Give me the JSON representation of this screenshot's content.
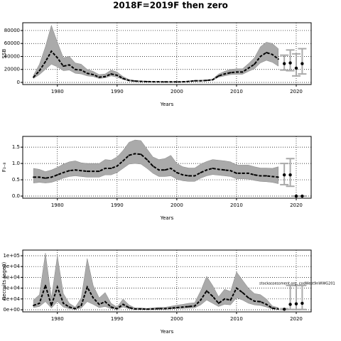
{
  "title": "2018F=2019F then zero",
  "chart_data": [
    {
      "type": "line",
      "ylabel": "SSB",
      "xlabel": "Years",
      "xlim": [
        1974.2,
        2022.5
      ],
      "xticks": [
        1980,
        1990,
        2000,
        2010,
        2020
      ],
      "ylim": [
        -3300,
        92000
      ],
      "yticks": [
        0,
        20000,
        40000,
        60000,
        80000
      ],
      "grid": true,
      "x": [
        1976,
        1977,
        1978,
        1979,
        1980,
        1981,
        1982,
        1983,
        1984,
        1985,
        1986,
        1987,
        1988,
        1989,
        1990,
        1991,
        1992,
        1993,
        1994,
        1995,
        1996,
        1997,
        1998,
        1999,
        2000,
        2001,
        2002,
        2003,
        2004,
        2005,
        2006,
        2007,
        2008,
        2009,
        2010,
        2011,
        2012,
        2013,
        2014,
        2015,
        2016,
        2017
      ],
      "values": [
        8000,
        18000,
        32000,
        48000,
        38000,
        25000,
        27000,
        20000,
        19000,
        14000,
        12000,
        8000,
        9000,
        13000,
        11000,
        6000,
        3000,
        2000,
        1500,
        1200,
        1000,
        900,
        800,
        800,
        800,
        900,
        1500,
        2500,
        2500,
        3000,
        4000,
        10000,
        13000,
        15000,
        16000,
        16000,
        22000,
        28000,
        40000,
        46000,
        43000,
        36000
      ],
      "low": [
        6000,
        12000,
        20000,
        28000,
        24000,
        18000,
        19000,
        14000,
        13000,
        10000,
        9000,
        6000,
        7000,
        10000,
        8000,
        4500,
        2200,
        1400,
        1000,
        800,
        700,
        600,
        500,
        500,
        500,
        600,
        1100,
        2000,
        2000,
        2400,
        3200,
        8000,
        10000,
        12000,
        12500,
        12500,
        17000,
        21000,
        30000,
        34000,
        31000,
        25000
      ],
      "high": [
        11000,
        28000,
        55000,
        88000,
        62000,
        38000,
        40000,
        30000,
        28000,
        20000,
        17000,
        12000,
        13000,
        19000,
        16000,
        9000,
        4500,
        3000,
        2300,
        1800,
        1500,
        1400,
        1200,
        1200,
        1200,
        1400,
        2200,
        3300,
        3300,
        4000,
        5200,
        13000,
        17000,
        20000,
        21000,
        21000,
        29000,
        38000,
        55000,
        62000,
        60000,
        52000
      ],
      "forecast_x": [
        2018,
        2019,
        2020,
        2021
      ],
      "forecast_values": [
        29000,
        30000,
        22000,
        29000
      ],
      "forecast_low": [
        19000,
        18000,
        10000,
        13000
      ],
      "forecast_high": [
        42000,
        50000,
        44000,
        52000
      ]
    },
    {
      "type": "line",
      "ylabel": "F₃₋₈",
      "xlabel": "Years",
      "xlim": [
        1974.2,
        2022.5
      ],
      "xticks": [
        1980,
        1990,
        2000,
        2010,
        2020
      ],
      "ylim": [
        -0.065,
        1.83
      ],
      "yticks": [
        {
          "value": 0,
          "label": "0.0"
        },
        0.5,
        {
          "value": 1,
          "label": "1.0"
        },
        1.5
      ],
      "grid": true,
      "x": [
        1976,
        1977,
        1978,
        1979,
        1980,
        1981,
        1982,
        1983,
        1984,
        1985,
        1986,
        1987,
        1988,
        1989,
        1990,
        1991,
        1992,
        1993,
        1994,
        1995,
        1996,
        1997,
        1998,
        1999,
        2000,
        2001,
        2002,
        2003,
        2004,
        2005,
        2006,
        2007,
        2008,
        2009,
        2010,
        2011,
        2012,
        2013,
        2014,
        2015,
        2016,
        2017
      ],
      "values": [
        0.58,
        0.58,
        0.55,
        0.58,
        0.65,
        0.72,
        0.78,
        0.8,
        0.78,
        0.76,
        0.76,
        0.76,
        0.85,
        0.85,
        0.92,
        1.08,
        1.25,
        1.3,
        1.28,
        1.12,
        0.92,
        0.8,
        0.8,
        0.85,
        0.72,
        0.65,
        0.62,
        0.62,
        0.72,
        0.8,
        0.85,
        0.82,
        0.8,
        0.78,
        0.7,
        0.7,
        0.7,
        0.65,
        0.62,
        0.62,
        0.6,
        0.58
      ],
      "low": [
        0.4,
        0.42,
        0.4,
        0.42,
        0.48,
        0.55,
        0.6,
        0.62,
        0.6,
        0.58,
        0.58,
        0.58,
        0.65,
        0.65,
        0.72,
        0.85,
        0.98,
        1.0,
        0.98,
        0.85,
        0.7,
        0.6,
        0.6,
        0.62,
        0.52,
        0.47,
        0.45,
        0.45,
        0.55,
        0.62,
        0.66,
        0.64,
        0.62,
        0.6,
        0.53,
        0.53,
        0.52,
        0.48,
        0.45,
        0.44,
        0.42,
        0.38
      ],
      "high": [
        0.85,
        0.82,
        0.75,
        0.8,
        0.88,
        0.98,
        1.05,
        1.08,
        1.02,
        1.0,
        1.0,
        1.0,
        1.12,
        1.1,
        1.2,
        1.4,
        1.65,
        1.72,
        1.7,
        1.45,
        1.2,
        1.12,
        1.15,
        1.25,
        1.0,
        0.9,
        0.86,
        0.86,
        0.98,
        1.06,
        1.12,
        1.1,
        1.08,
        1.05,
        0.95,
        0.95,
        0.95,
        0.9,
        0.86,
        0.86,
        0.85,
        0.9
      ],
      "forecast_x": [
        2018,
        2019,
        2020,
        2021
      ],
      "forecast_values": [
        0.65,
        0.65,
        0,
        0
      ],
      "forecast_low": [
        0.35,
        0.3,
        0,
        0
      ],
      "forecast_high": [
        1.0,
        1.15,
        0,
        0
      ]
    },
    {
      "type": "line",
      "ylabel": "Recruits (age0)",
      "xlabel": "Years",
      "xlim": [
        1974.2,
        2022.5
      ],
      "xticks": [
        1980,
        1990,
        2000,
        2010,
        2020
      ],
      "ylim": [
        -3900,
        110500
      ],
      "yticks": [
        {
          "value": 0,
          "label": "0e+00"
        },
        {
          "value": 20000,
          "label": "2e+04"
        },
        {
          "value": 40000,
          "label": "4e+04"
        },
        {
          "value": 60000,
          "label": "6e+04"
        },
        {
          "value": 80000,
          "label": "8e+04"
        },
        {
          "value": 100000,
          "label": "1e+05"
        }
      ],
      "grid": true,
      "annotation": "stockassessment.org, codWest9nWWG201",
      "x": [
        1976,
        1977,
        1978,
        1979,
        1980,
        1981,
        1982,
        1983,
        1984,
        1985,
        1986,
        1987,
        1988,
        1989,
        1990,
        1991,
        1992,
        1993,
        1994,
        1995,
        1996,
        1997,
        1998,
        1999,
        2000,
        2001,
        2002,
        2003,
        2004,
        2005,
        2006,
        2007,
        2008,
        2009,
        2010,
        2011,
        2012,
        2013,
        2014,
        2015,
        2016,
        2017
      ],
      "values": [
        8000,
        12000,
        45000,
        8000,
        42000,
        12000,
        5000,
        2000,
        8000,
        42000,
        22000,
        10000,
        15000,
        5000,
        2000,
        10000,
        4000,
        1500,
        1500,
        1000,
        1500,
        2000,
        2000,
        3000,
        4000,
        5000,
        6000,
        7000,
        18000,
        35000,
        25000,
        12000,
        20000,
        18000,
        40000,
        32000,
        22000,
        16000,
        15000,
        10000,
        3000,
        1500
      ],
      "low": [
        4000,
        6000,
        15000,
        3000,
        15000,
        5000,
        2000,
        800,
        3000,
        15000,
        10000,
        4000,
        6000,
        2000,
        800,
        5000,
        1800,
        600,
        600,
        400,
        700,
        900,
        900,
        1400,
        2000,
        2500,
        3000,
        3500,
        9000,
        18000,
        12000,
        6000,
        10000,
        9000,
        22000,
        18000,
        12000,
        9000,
        8000,
        5000,
        1200,
        500
      ],
      "high": [
        18000,
        28000,
        105000,
        22000,
        100000,
        30000,
        12000,
        5000,
        22000,
        95000,
        45000,
        22000,
        32000,
        12000,
        5000,
        20000,
        9000,
        3500,
        3500,
        2500,
        3500,
        4500,
        4500,
        6500,
        8500,
        10000,
        12000,
        13000,
        35000,
        62000,
        45000,
        24000,
        38000,
        34000,
        70000,
        55000,
        40000,
        30000,
        28000,
        20000,
        7000,
        4000
      ],
      "forecast_x": [
        2018,
        2019,
        2020,
        2021
      ],
      "forecast_values": [
        1000,
        10000,
        11000,
        12000
      ],
      "forecast_low": [
        200,
        500,
        500,
        500
      ],
      "forecast_high": [
        2000,
        45000,
        45000,
        45000
      ]
    }
  ]
}
